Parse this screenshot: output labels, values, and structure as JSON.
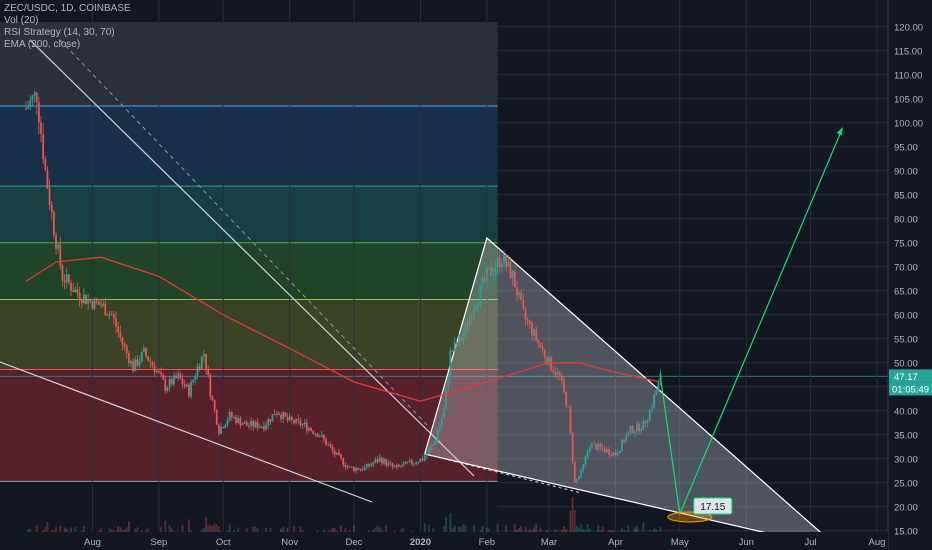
{
  "legend": {
    "symbol": "ZEC/USDC, 1D, COINBASE",
    "volume": "Vol (20)",
    "rsi": "RSI Strategy (14, 30, 70)",
    "ema": "EMA (200, close)"
  },
  "colors": {
    "background": "#131722",
    "up_candle": "#26a69a",
    "down_candle": "#ef5350",
    "ema_line": "#e53935",
    "projection": "#00e676",
    "triangle": "#ffffff",
    "fib_red": "#b2303a",
    "fib_orange": "#9e5a2a",
    "fib_olive": "#6b7a2a",
    "fib_green": "#2e7d32",
    "fib_teal": "#1f6f6a",
    "fib_blue": "#1e4f7a",
    "fib_gray": "#4a4f5c"
  },
  "labels": {
    "target_box": "17.15",
    "price_tag": "47.17",
    "countdown_tag": "01:05:49"
  },
  "chart_data": {
    "type": "candlestick",
    "symbol": "ZEC/USDC",
    "timeframe": "1D",
    "exchange": "COINBASE",
    "x_tick_labels": [
      "Aug",
      "Sep",
      "Oct",
      "Nov",
      "Dec",
      "2020",
      "Feb",
      "Mar",
      "Apr",
      "May",
      "Jun",
      "Jul",
      "Aug"
    ],
    "y_tick_labels": [
      15,
      20,
      25,
      30,
      35,
      40,
      45,
      50,
      55,
      60,
      65,
      70,
      75,
      80,
      85,
      90,
      95,
      100,
      105,
      110,
      115,
      120
    ],
    "ylim": [
      11,
      121
    ],
    "last_price": 47.17,
    "fib_levels": [
      25.3,
      48.6,
      63.2,
      75.0,
      86.8,
      103.5
    ],
    "price_path": [
      [
        "2019-07-01",
        103
      ],
      [
        "2019-07-06",
        106
      ],
      [
        "2019-07-10",
        90
      ],
      [
        "2019-07-14",
        78
      ],
      [
        "2019-07-18",
        68
      ],
      [
        "2019-07-24",
        65
      ],
      [
        "2019-07-30",
        63
      ],
      [
        "2019-08-05",
        62
      ],
      [
        "2019-08-10",
        60
      ],
      [
        "2019-08-15",
        54
      ],
      [
        "2019-08-20",
        49
      ],
      [
        "2019-08-25",
        52
      ],
      [
        "2019-08-30",
        49
      ],
      [
        "2019-09-04",
        45
      ],
      [
        "2019-09-10",
        47
      ],
      [
        "2019-09-15",
        44
      ],
      [
        "2019-09-19",
        49
      ],
      [
        "2019-09-22",
        52
      ],
      [
        "2019-09-25",
        44
      ],
      [
        "2019-09-29",
        36
      ],
      [
        "2019-10-04",
        39
      ],
      [
        "2019-10-12",
        37
      ],
      [
        "2019-10-20",
        37
      ],
      [
        "2019-10-26",
        40
      ],
      [
        "2019-10-31",
        38
      ],
      [
        "2019-11-08",
        37
      ],
      [
        "2019-11-15",
        35
      ],
      [
        "2019-11-22",
        31
      ],
      [
        "2019-11-29",
        28
      ],
      [
        "2019-12-06",
        28
      ],
      [
        "2019-12-13",
        30
      ],
      [
        "2019-12-20",
        28
      ],
      [
        "2019-12-27",
        29
      ],
      [
        "2020-01-02",
        30
      ],
      [
        "2020-01-07",
        33
      ],
      [
        "2020-01-12",
        40
      ],
      [
        "2020-01-15",
        52
      ],
      [
        "2020-01-20",
        55
      ],
      [
        "2020-01-26",
        62
      ],
      [
        "2020-02-01",
        68
      ],
      [
        "2020-02-08",
        72
      ],
      [
        "2020-02-13",
        68
      ],
      [
        "2020-02-18",
        60
      ],
      [
        "2020-02-24",
        55
      ],
      [
        "2020-03-01",
        50
      ],
      [
        "2020-03-06",
        47
      ],
      [
        "2020-03-10",
        40
      ],
      [
        "2020-03-13",
        25
      ],
      [
        "2020-03-16",
        27
      ],
      [
        "2020-03-20",
        33
      ],
      [
        "2020-03-26",
        32
      ],
      [
        "2020-04-01",
        31
      ],
      [
        "2020-04-08",
        36
      ],
      [
        "2020-04-14",
        37
      ],
      [
        "2020-04-17",
        40
      ],
      [
        "2020-04-22",
        47
      ]
    ],
    "ema_200": [
      [
        "2019-07-01",
        67
      ],
      [
        "2019-07-15",
        71
      ],
      [
        "2019-08-05",
        72
      ],
      [
        "2019-09-01",
        68
      ],
      [
        "2019-10-01",
        60
      ],
      [
        "2019-11-01",
        53
      ],
      [
        "2019-12-01",
        46
      ],
      [
        "2020-01-01",
        42
      ],
      [
        "2020-02-01",
        46
      ],
      [
        "2020-03-01",
        50
      ],
      [
        "2020-03-15",
        50
      ],
      [
        "2020-04-01",
        48
      ],
      [
        "2020-04-22",
        46
      ]
    ],
    "annotations": {
      "triangle_top": [
        "2020-02-01",
        76
      ],
      "triangle_left": [
        "2020-01-03",
        31
      ],
      "triangle_bottom_right": [
        "2020-07-15",
        11
      ],
      "projection_low": [
        "2020-05-01",
        18.5
      ],
      "projection_target": [
        "2020-07-16",
        99
      ],
      "projection_low_label": 17.15
    }
  }
}
